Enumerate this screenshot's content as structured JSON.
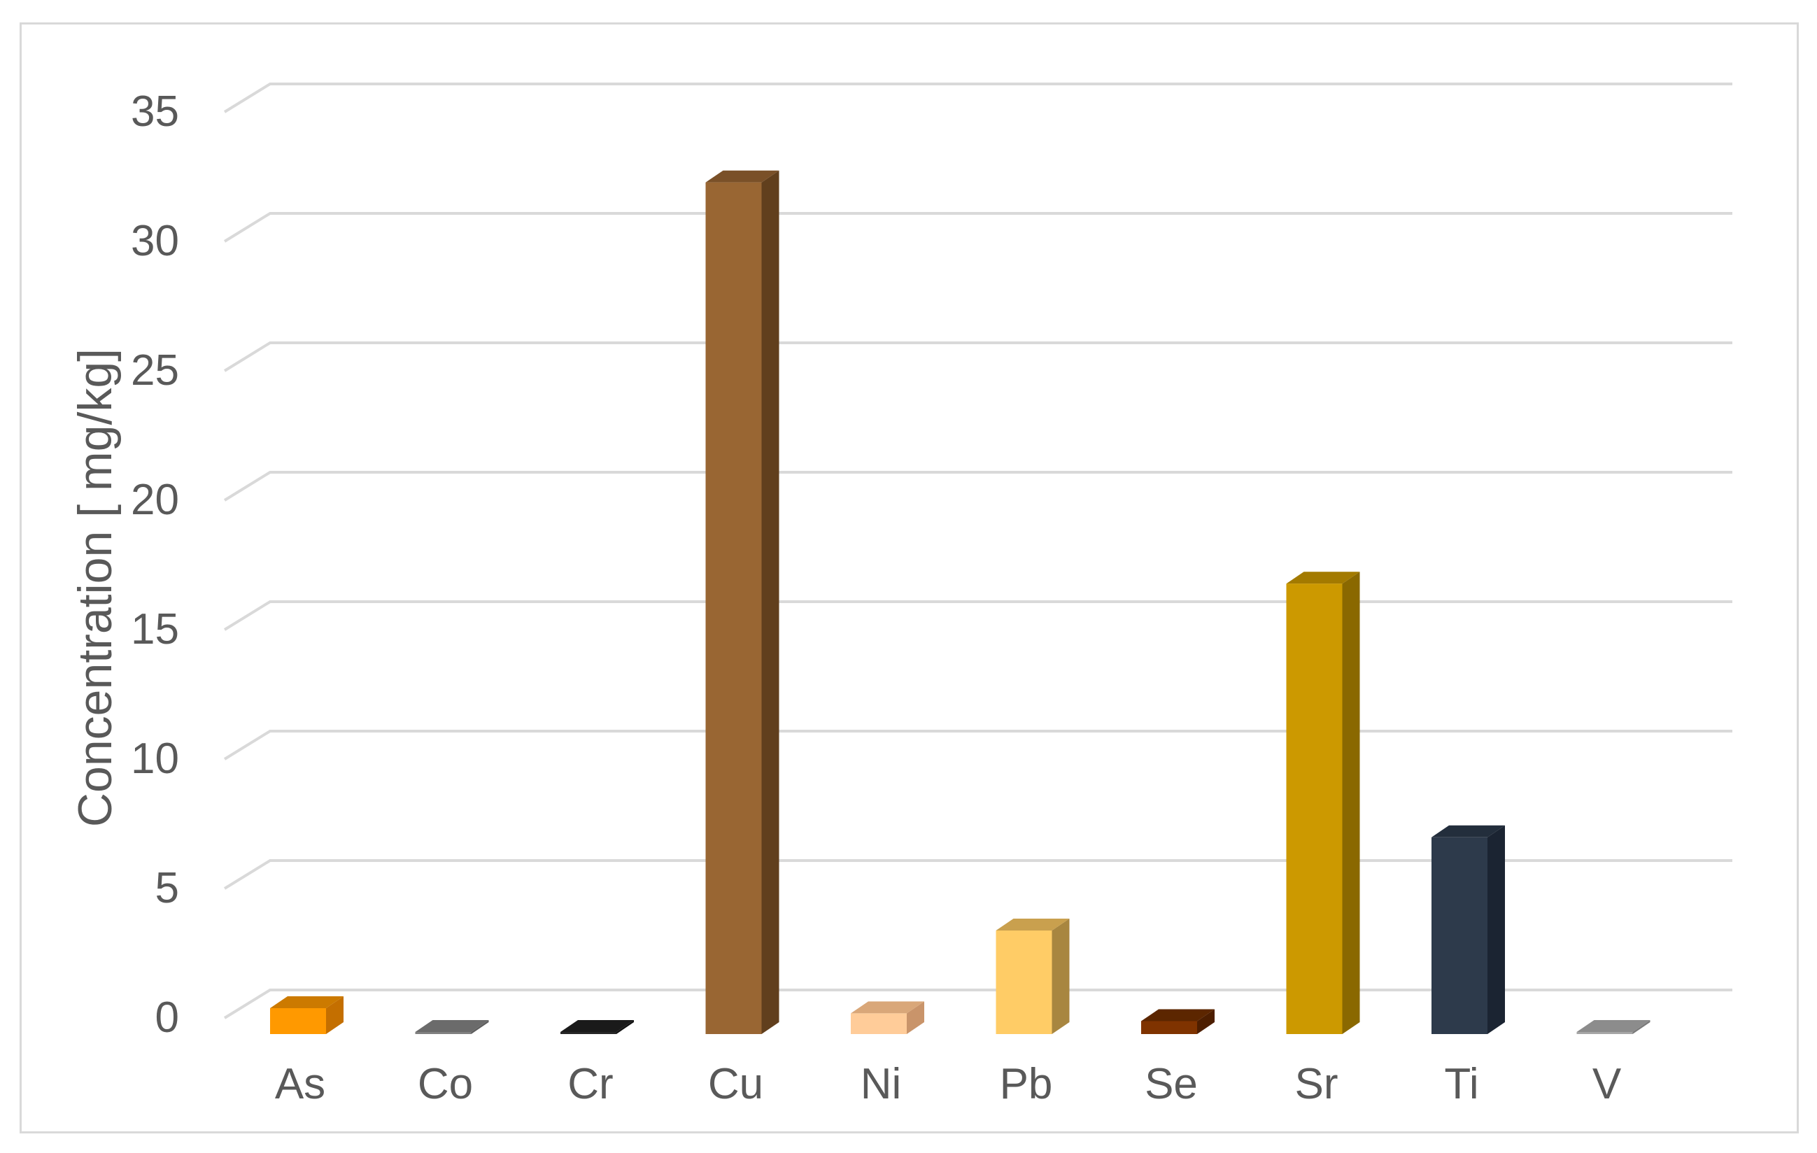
{
  "chart_data": {
    "type": "bar",
    "style": "3d-column",
    "title": "",
    "xlabel": "",
    "ylabel": "Concentration [ mg/kg]",
    "categories": [
      "As",
      "Co",
      "Cr",
      "Cu",
      "Ni",
      "Pb",
      "Se",
      "Sr",
      "Ti",
      "V"
    ],
    "values": [
      1.0,
      0.02,
      0.05,
      32.9,
      0.8,
      4.0,
      0.5,
      17.4,
      7.6,
      0.02
    ],
    "colors": [
      "#ff9900",
      "#808080",
      "#262626",
      "#996633",
      "#ffcc99",
      "#ffcc66",
      "#7f3300",
      "#cc9900",
      "#2d3a4b",
      "#a6a6a6"
    ],
    "side_colors": [
      "#c46f00",
      "#5e5e5e",
      "#111111",
      "#613f1d",
      "#c9946a",
      "#a88640",
      "#4d1e00",
      "#8a6800",
      "#1b2432",
      "#7a7a7a"
    ],
    "top_colors": [
      "#cc7a00",
      "#6b6b6b",
      "#1a1a1a",
      "#7a5028",
      "#d9a779",
      "#c9a04e",
      "#5c2600",
      "#a37a00",
      "#232e3c",
      "#8c8c8c"
    ],
    "yticks": [
      0,
      5,
      10,
      15,
      20,
      25,
      30,
      35
    ],
    "ylim": [
      0,
      35
    ],
    "grid": true,
    "gridline_color": "#d9d9d9",
    "text_color": "#595959",
    "legend": "none"
  }
}
